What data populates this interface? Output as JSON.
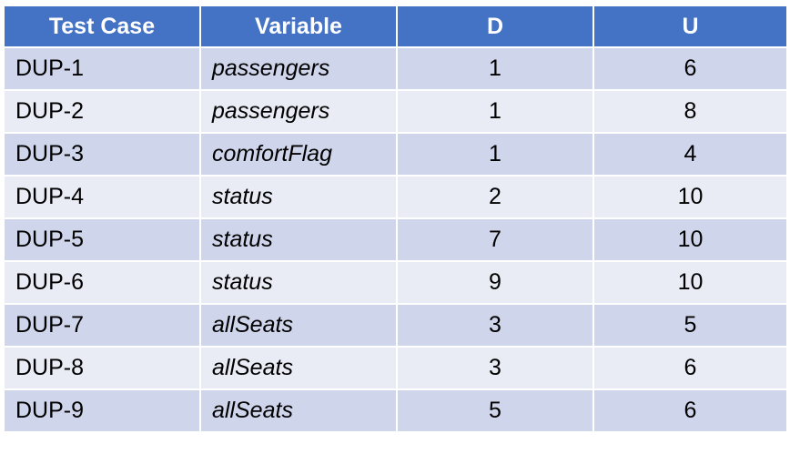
{
  "table": {
    "headers": [
      "Test Case",
      "Variable",
      "D",
      "U"
    ],
    "rows": [
      {
        "test_case": "DUP-1",
        "variable": "passengers",
        "d": "1",
        "u": "6"
      },
      {
        "test_case": "DUP-2",
        "variable": "passengers",
        "d": "1",
        "u": "8"
      },
      {
        "test_case": "DUP-3",
        "variable": "comfortFlag",
        "d": "1",
        "u": "4"
      },
      {
        "test_case": "DUP-4",
        "variable": "status",
        "d": "2",
        "u": "10"
      },
      {
        "test_case": "DUP-5",
        "variable": "status",
        "d": "7",
        "u": "10"
      },
      {
        "test_case": "DUP-6",
        "variable": "status",
        "d": "9",
        "u": "10"
      },
      {
        "test_case": "DUP-7",
        "variable": "allSeats",
        "d": "3",
        "u": "5"
      },
      {
        "test_case": "DUP-8",
        "variable": "allSeats",
        "d": "3",
        "u": "6"
      },
      {
        "test_case": "DUP-9",
        "variable": "allSeats",
        "d": "5",
        "u": "6"
      }
    ]
  },
  "colors": {
    "header_bg": "#4472c4",
    "row_dark": "#cfd5ea",
    "row_light": "#e9ebf5"
  }
}
